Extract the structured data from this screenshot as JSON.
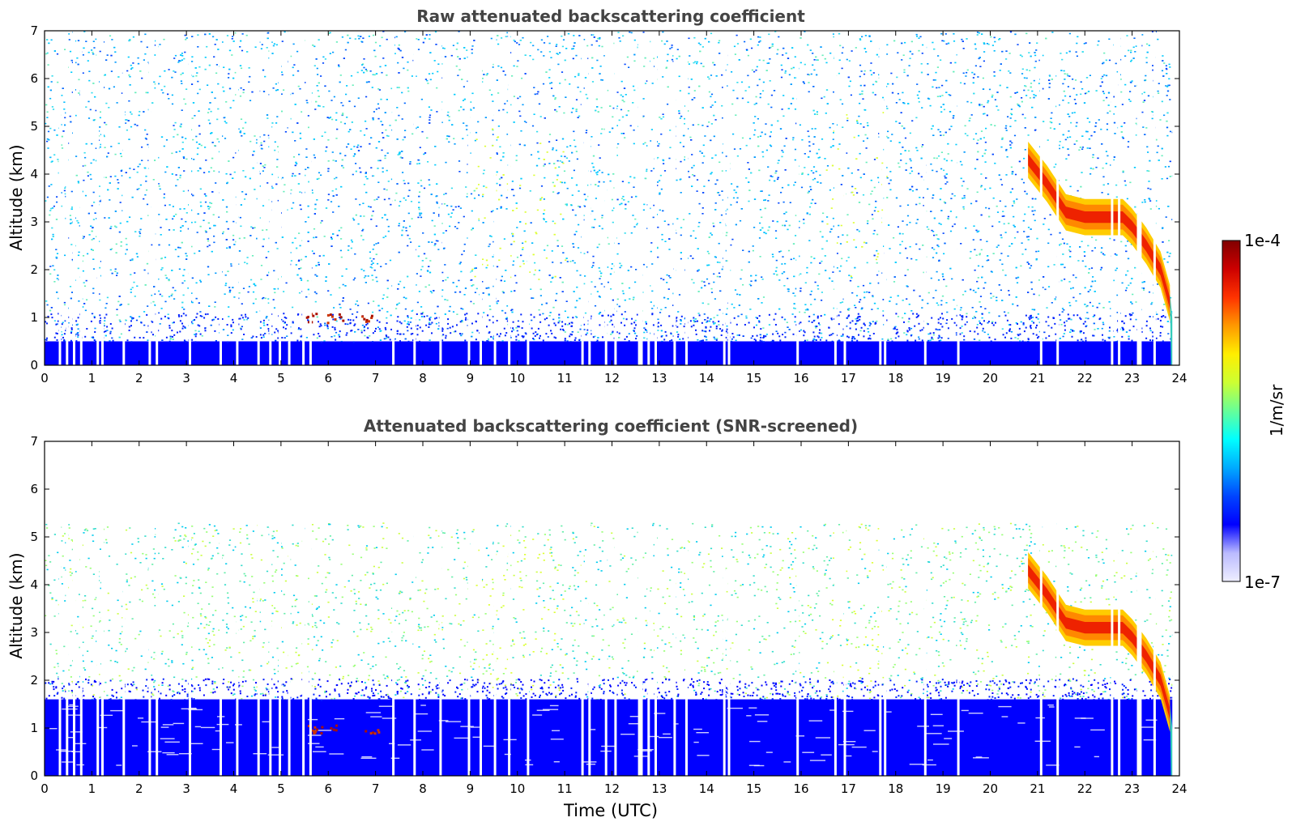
{
  "figure": {
    "xlabel": "Time (UTC)"
  },
  "colorbar": {
    "label": "1/m/sr",
    "max_label": "1e-4",
    "min_label": "1e-7",
    "scale": "log",
    "range": [
      1e-07,
      0.0001
    ],
    "colormap": "jet",
    "colormap_stops": [
      "#eeeeff",
      "#bbbbff",
      "#0000ff",
      "#0044ff",
      "#00aaff",
      "#00ffff",
      "#66ff99",
      "#ccff33",
      "#ffee00",
      "#ff9900",
      "#ff3300",
      "#cc0000",
      "#800000"
    ]
  },
  "chart_data": [
    {
      "type": "heatmap",
      "title": "Raw attenuated backscattering coefficient",
      "xlabel": "",
      "ylabel": "Altitude (km)",
      "xlim": [
        0,
        24
      ],
      "ylim": [
        0,
        7
      ],
      "x_ticks": [
        "0",
        "1",
        "2",
        "3",
        "4",
        "5",
        "6",
        "7",
        "8",
        "9",
        "10",
        "11",
        "12",
        "13",
        "14",
        "15",
        "16",
        "17",
        "18",
        "19",
        "20",
        "21",
        "22",
        "23",
        "24"
      ],
      "y_ticks": [
        "0",
        "1",
        "2",
        "3",
        "4",
        "5",
        "6",
        "7"
      ],
      "grid": false,
      "features": [
        {
          "name": "boundary layer (dense, low altitude)",
          "x_range": [
            0,
            24
          ],
          "y_range": [
            0,
            0.5
          ],
          "value": 3e-07
        },
        {
          "name": "aerosol layer scattered points",
          "x_range": [
            5.5,
            7.1
          ],
          "y_range": [
            0.9,
            1.1
          ],
          "value": 8e-05
        },
        {
          "name": "cloud layer",
          "points": [
            [
              20.8,
              4.3
            ],
            [
              21.2,
              3.8
            ],
            [
              21.6,
              3.2
            ],
            [
              22.0,
              3.1
            ],
            [
              22.4,
              3.1
            ],
            [
              22.8,
              3.1
            ],
            [
              23.0,
              2.9
            ],
            [
              23.3,
              2.5
            ],
            [
              23.6,
              2.0
            ],
            [
              23.8,
              1.3
            ]
          ],
          "value": 5e-05
        }
      ],
      "data_gaps_hours": [
        0.3,
        0.45,
        0.6,
        0.75,
        1.1,
        1.2,
        1.65,
        2.2,
        2.35,
        3.05,
        3.7,
        4.05,
        4.5,
        4.75,
        4.95,
        5.15,
        5.45,
        5.6,
        7.35,
        7.8,
        8.35,
        8.95,
        9.2,
        9.5,
        9.8,
        10.2,
        11.35,
        11.5,
        11.85,
        12.05,
        12.55,
        12.6,
        12.75,
        12.9,
        13.3,
        13.55,
        14.35,
        14.45,
        15.9,
        16.7,
        16.9,
        17.65,
        17.75,
        18.6,
        19.3,
        21.05,
        21.4,
        22.55,
        22.7,
        23.1,
        23.15,
        23.45
      ]
    },
    {
      "type": "heatmap",
      "title": "Attenuated backscattering coefficient (SNR-screened)",
      "xlabel": "Time (UTC)",
      "ylabel": "Altitude (km)",
      "xlim": [
        0,
        24
      ],
      "ylim": [
        0,
        7
      ],
      "x_ticks": [
        "0",
        "1",
        "2",
        "3",
        "4",
        "5",
        "6",
        "7",
        "8",
        "9",
        "10",
        "11",
        "12",
        "13",
        "14",
        "15",
        "16",
        "17",
        "18",
        "19",
        "20",
        "21",
        "22",
        "23",
        "24"
      ],
      "y_ticks": [
        "0",
        "1",
        "2",
        "3",
        "4",
        "5",
        "6",
        "7"
      ],
      "grid": false,
      "features": [
        {
          "name": "boundary layer (screened, dense)",
          "x_range": [
            0,
            24
          ],
          "y_range": [
            0,
            1.6
          ],
          "value": 3e-07
        },
        {
          "name": "aerosol layer scattered points",
          "x_range": [
            5.5,
            7.1
          ],
          "y_range": [
            0.9,
            1.1
          ],
          "value": 8e-05
        },
        {
          "name": "cloud layer",
          "points": [
            [
              20.8,
              4.3
            ],
            [
              21.2,
              3.8
            ],
            [
              21.6,
              3.2
            ],
            [
              22.0,
              3.1
            ],
            [
              22.4,
              3.1
            ],
            [
              22.8,
              3.1
            ],
            [
              23.0,
              2.9
            ],
            [
              23.3,
              2.5
            ],
            [
              23.6,
              2.0
            ],
            [
              23.8,
              1.3
            ]
          ],
          "value": 5e-05
        }
      ],
      "data_gaps_hours": [
        0.3,
        0.45,
        0.6,
        0.75,
        1.1,
        1.2,
        1.65,
        2.2,
        2.35,
        3.05,
        3.7,
        4.05,
        4.5,
        4.75,
        4.95,
        5.15,
        5.45,
        5.6,
        7.35,
        7.8,
        8.35,
        8.95,
        9.2,
        9.5,
        9.8,
        10.2,
        11.35,
        11.5,
        11.85,
        12.05,
        12.55,
        12.6,
        12.75,
        12.9,
        13.3,
        13.55,
        14.35,
        14.45,
        15.9,
        16.7,
        16.9,
        17.65,
        17.75,
        18.6,
        19.3,
        21.05,
        21.4,
        22.55,
        22.7,
        23.1,
        23.15,
        23.45
      ]
    }
  ]
}
